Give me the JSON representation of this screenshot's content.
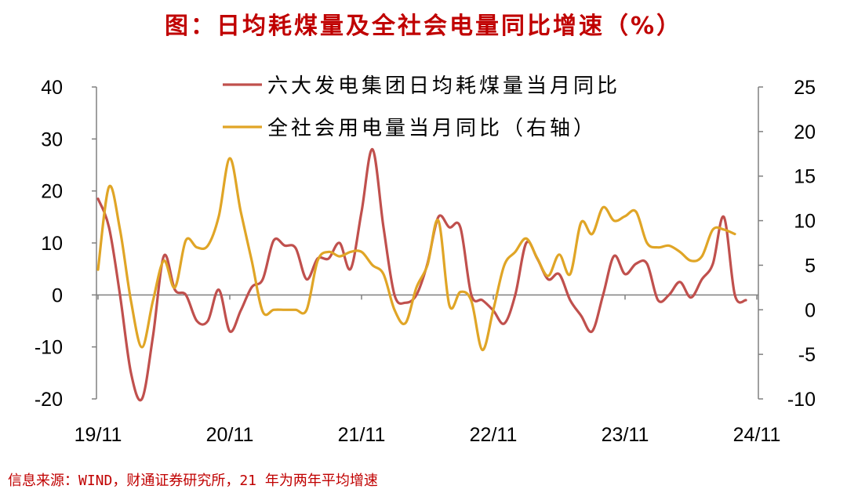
{
  "title": "图：日均耗煤量及全社会电量同比增速（%）",
  "source": "信息来源：WIND，财通证券研究所，21 年为两年平均增速",
  "chart_data": {
    "type": "line",
    "x_ticks": [
      "19/11",
      "20/11",
      "21/11",
      "22/11",
      "23/11",
      "24/11"
    ],
    "y_left": {
      "ticks": [
        "40",
        "30",
        "20",
        "10",
        "0",
        "-10",
        "-20"
      ],
      "range": [
        -20,
        40
      ]
    },
    "y_right": {
      "ticks": [
        "25",
        "20",
        "15",
        "10",
        "5",
        "0",
        "-5",
        "-10"
      ],
      "range": [
        -10,
        25
      ]
    },
    "grid": false,
    "legend_position": "top-center",
    "series": [
      {
        "name": "六大发电集团日均耗煤量当月同比",
        "axis": "left",
        "color": "#c0504d",
        "points": [
          [
            "2019-11",
            18.5
          ],
          [
            "2019-12",
            13
          ],
          [
            "2020-01",
            0
          ],
          [
            "2020-02",
            -15
          ],
          [
            "2020-03",
            -20
          ],
          [
            "2020-04",
            -8
          ],
          [
            "2020-05",
            7.5
          ],
          [
            "2020-06",
            1
          ],
          [
            "2020-07",
            0
          ],
          [
            "2020-08",
            -5
          ],
          [
            "2020-09",
            -5
          ],
          [
            "2020-10",
            1
          ],
          [
            "2020-11",
            -7
          ],
          [
            "2020-12",
            -3
          ],
          [
            "2021-01",
            1.5
          ],
          [
            "2021-02",
            3
          ],
          [
            "2021-03",
            10.5
          ],
          [
            "2021-04",
            9.5
          ],
          [
            "2021-05",
            9
          ],
          [
            "2021-06",
            3
          ],
          [
            "2021-07",
            7
          ],
          [
            "2021-08",
            7
          ],
          [
            "2021-09",
            10
          ],
          [
            "2021-10",
            5
          ],
          [
            "2021-11",
            16
          ],
          [
            "2021-12",
            28
          ],
          [
            "2022-01",
            13
          ],
          [
            "2022-02",
            0
          ],
          [
            "2022-03",
            -1.5
          ],
          [
            "2022-04",
            0
          ],
          [
            "2022-05",
            6
          ],
          [
            "2022-06",
            15
          ],
          [
            "2022-07",
            13
          ],
          [
            "2022-08",
            13
          ],
          [
            "2022-09",
            0
          ],
          [
            "2022-10",
            -1
          ],
          [
            "2022-11",
            -3
          ],
          [
            "2022-12",
            -5.5
          ],
          [
            "2023-01",
            0
          ],
          [
            "2023-02",
            10
          ],
          [
            "2023-03",
            7
          ],
          [
            "2023-04",
            3
          ],
          [
            "2023-05",
            4
          ],
          [
            "2023-06",
            -1
          ],
          [
            "2023-07",
            -4
          ],
          [
            "2023-08",
            -7
          ],
          [
            "2023-09",
            0
          ],
          [
            "2023-10",
            7.5
          ],
          [
            "2023-11",
            4
          ],
          [
            "2023-12",
            6
          ],
          [
            "2024-01",
            6
          ],
          [
            "2024-02",
            -1
          ],
          [
            "2024-03",
            0
          ],
          [
            "2024-04",
            2.5
          ],
          [
            "2024-05",
            -0.5
          ],
          [
            "2024-06",
            3
          ],
          [
            "2024-07",
            6
          ],
          [
            "2024-08",
            15
          ],
          [
            "2024-09",
            0
          ],
          [
            "2024-10",
            -1
          ]
        ]
      },
      {
        "name": "全社会用电量当月同比（右轴）",
        "axis": "right",
        "color": "#e0a526",
        "points": [
          [
            "2019-11",
            4.5
          ],
          [
            "2019-12",
            13.8
          ],
          [
            "2020-01",
            9
          ],
          [
            "2020-02",
            1
          ],
          [
            "2020-03",
            -4.2
          ],
          [
            "2020-04",
            1
          ],
          [
            "2020-05",
            5.5
          ],
          [
            "2020-06",
            2.5
          ],
          [
            "2020-07",
            7.8
          ],
          [
            "2020-08",
            7
          ],
          [
            "2020-09",
            7.2
          ],
          [
            "2020-10",
            10.5
          ],
          [
            "2020-11",
            17
          ],
          [
            "2020-12",
            11
          ],
          [
            "2021-01",
            5.5
          ],
          [
            "2021-02",
            -0.2
          ],
          [
            "2021-03",
            0
          ],
          [
            "2021-04",
            0
          ],
          [
            "2021-05",
            0
          ],
          [
            "2021-06",
            0
          ],
          [
            "2021-07",
            5.5
          ],
          [
            "2021-08",
            6.5
          ],
          [
            "2021-09",
            6
          ],
          [
            "2021-10",
            6.5
          ],
          [
            "2021-11",
            6.5
          ],
          [
            "2021-12",
            5
          ],
          [
            "2022-01",
            4
          ],
          [
            "2022-02",
            0
          ],
          [
            "2022-03",
            -1.5
          ],
          [
            "2022-04",
            2.5
          ],
          [
            "2022-05",
            5
          ],
          [
            "2022-06",
            10
          ],
          [
            "2022-07",
            0.5
          ],
          [
            "2022-08",
            2
          ],
          [
            "2022-09",
            1
          ],
          [
            "2022-10",
            -4.5
          ],
          [
            "2022-11",
            0
          ],
          [
            "2022-12",
            5
          ],
          [
            "2023-01",
            6.5
          ],
          [
            "2023-02",
            8
          ],
          [
            "2023-03",
            5.8
          ],
          [
            "2023-04",
            3.8
          ],
          [
            "2023-05",
            6.2
          ],
          [
            "2023-06",
            4
          ],
          [
            "2023-07",
            9.8
          ],
          [
            "2023-08",
            8.5
          ],
          [
            "2023-09",
            11.5
          ],
          [
            "2023-10",
            10
          ],
          [
            "2023-11",
            10.5
          ],
          [
            "2023-12",
            11
          ],
          [
            "2024-01",
            7.5
          ],
          [
            "2024-02",
            7
          ],
          [
            "2024-03",
            7.2
          ],
          [
            "2024-04",
            6.5
          ],
          [
            "2024-05",
            5.5
          ],
          [
            "2024-06",
            6
          ],
          [
            "2024-07",
            9
          ],
          [
            "2024-08",
            9
          ],
          [
            "2024-09",
            8.5
          ]
        ]
      }
    ]
  }
}
